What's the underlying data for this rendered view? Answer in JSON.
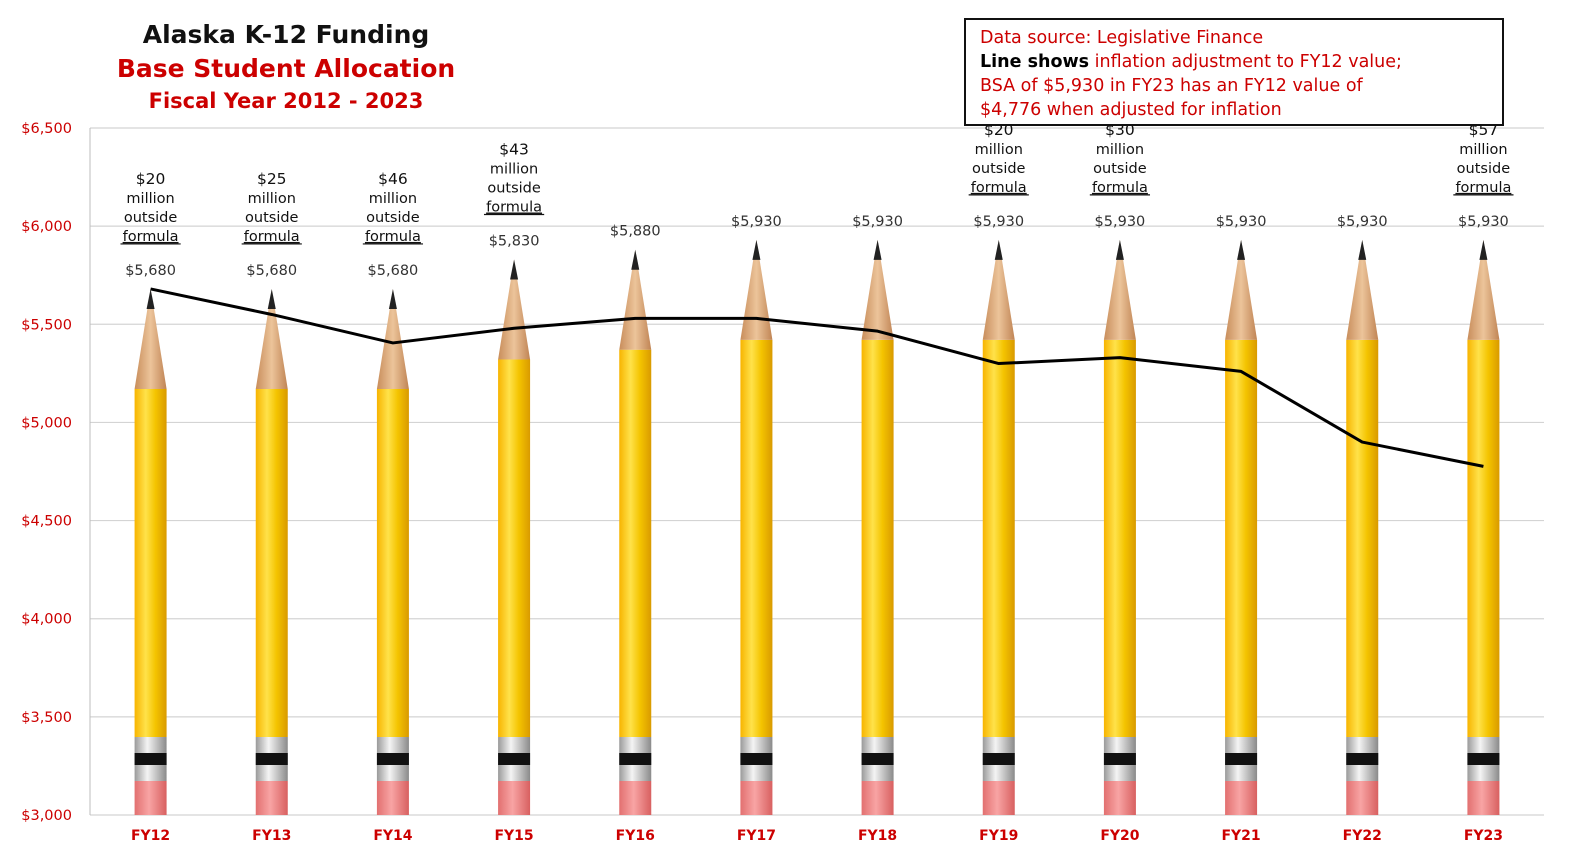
{
  "chart_data": {
    "type": "bar",
    "title": "Alaska K-12 Funding",
    "subtitle": "Base Student Allocation",
    "subtitle2": "Fiscal Year 2012 - 2023",
    "categories": [
      "FY12",
      "FY13",
      "FY14",
      "FY15",
      "FY16",
      "FY17",
      "FY18",
      "FY19",
      "FY20",
      "FY21",
      "FY22",
      "FY23"
    ],
    "series": [
      {
        "values": [
          5680,
          5680,
          5680,
          5830,
          5880,
          5930,
          5930,
          5930,
          5930,
          5930,
          5930,
          5930
        ]
      },
      {
        "values": [
          5680,
          5550,
          5405,
          5480,
          5530,
          5530,
          5465,
          5300,
          5330,
          5260,
          4900,
          4776
        ]
      }
    ],
    "data_labels": [
      "$5,680",
      "$5,680",
      "$5,680",
      "$5,830",
      "$5,880",
      "$5,930",
      "$5,930",
      "$5,930",
      "$5,930",
      "$5,930",
      "$5,930",
      "$5,930"
    ],
    "funding_notes": [
      {
        "index": 0,
        "amount": "$20",
        "lines": [
          "million",
          "outside"
        ],
        "last": "formula"
      },
      {
        "index": 1,
        "amount": "$25",
        "lines": [
          "million",
          "outside"
        ],
        "last": "formula"
      },
      {
        "index": 2,
        "amount": "$46",
        "lines": [
          "million",
          "outside"
        ],
        "last": "formula"
      },
      {
        "index": 3,
        "amount": "$43",
        "lines": [
          "million",
          "outside"
        ],
        "last": "formula"
      },
      {
        "index": 7,
        "amount": "$20",
        "lines": [
          "million",
          "outside"
        ],
        "last": "formula"
      },
      {
        "index": 8,
        "amount": "$30",
        "lines": [
          "million",
          "outside"
        ],
        "last": "formula"
      },
      {
        "index": 11,
        "amount": "$57",
        "lines": [
          "million",
          "outside"
        ],
        "last": "formula"
      }
    ],
    "ylim": [
      3000,
      6500
    ],
    "yticks": [
      3000,
      3500,
      4000,
      4500,
      5000,
      5500,
      6000,
      6500
    ],
    "ytick_labels": [
      "$3,000",
      "$3,500",
      "$4,000",
      "$4,500",
      "$5,000",
      "$5,500",
      "$6,000",
      "$6,500"
    ],
    "grid": true,
    "note": {
      "line1": "Data source: Legislative Finance",
      "line2_bold": "Line shows",
      "line2_rest": " inflation adjustment to FY12 value;",
      "line3": "BSA of $5,930 in FY23 has an FY12 value of",
      "line4": "$4,776 when adjusted for inflation"
    },
    "colors": {
      "axis_label": "#cc0000",
      "pencil_body": "#f2c200",
      "pencil_wood": "#d9a779",
      "pencil_eraser": "#f08a8a",
      "line": "#000000"
    }
  }
}
